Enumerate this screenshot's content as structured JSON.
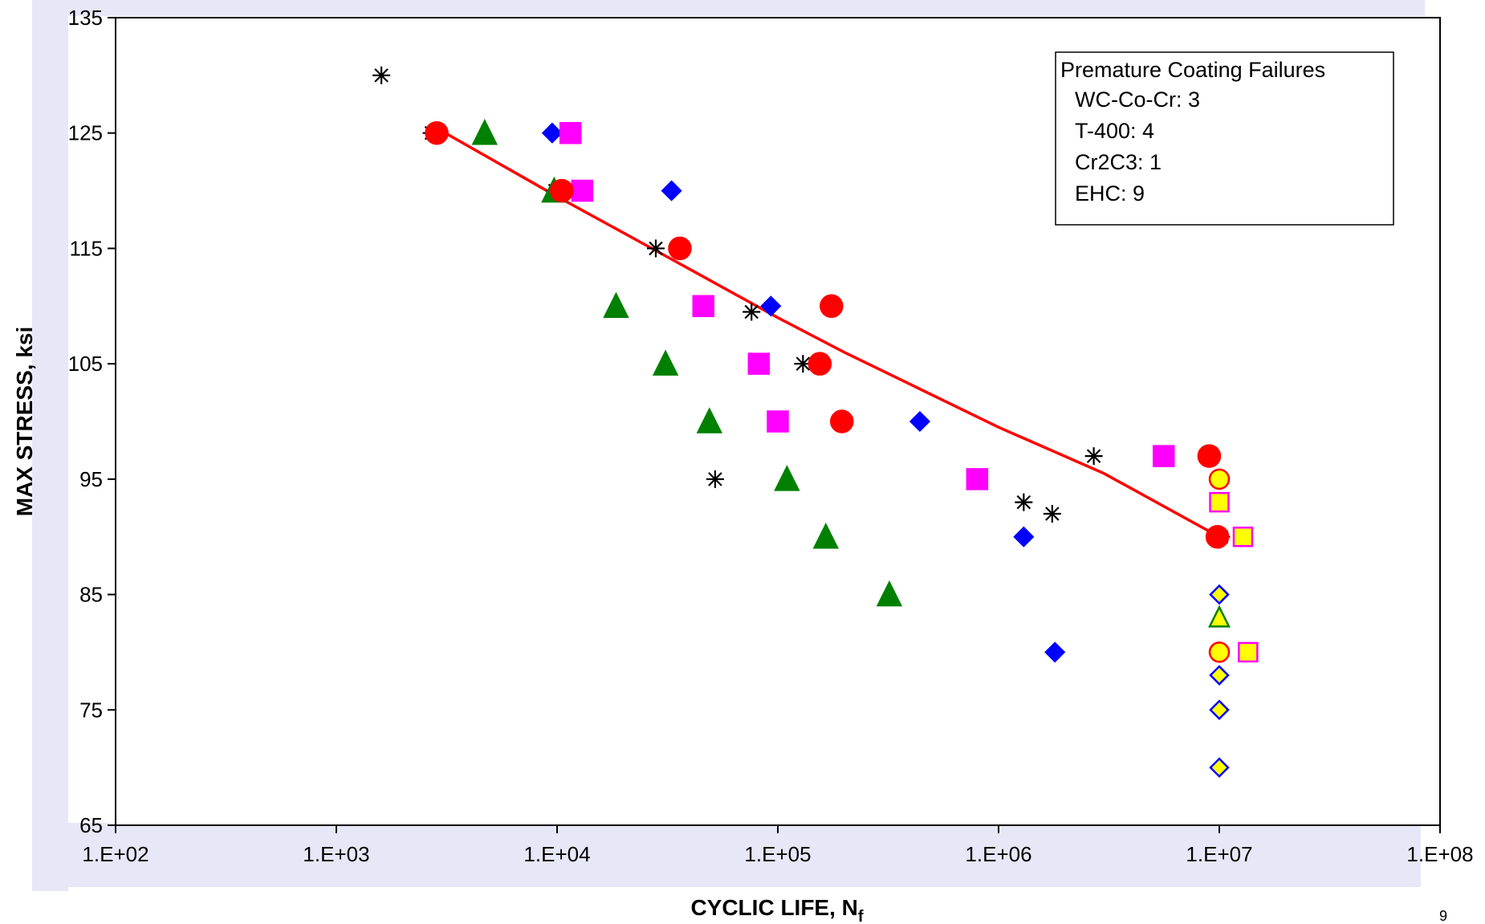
{
  "slide_number": "9",
  "colors": {
    "background_band": "#E6E8F7",
    "trend_line": "#FF0000",
    "green": "#008000",
    "blue": "#0000FF",
    "magenta": "#FF00FF",
    "red": "#FF0000",
    "black": "#000000",
    "runout_fill": "#FFFF00"
  },
  "chart_data": {
    "type": "scatter",
    "title": "",
    "xlabel": "CYCLIC LIFE, N",
    "xlabel_subscript": "f",
    "ylabel": "MAX STRESS, ksi",
    "x_scale": "log",
    "xlim": [
      100,
      100000000
    ],
    "ylim": [
      65,
      135
    ],
    "x_ticks": [
      100,
      1000,
      10000,
      100000,
      1000000,
      10000000,
      100000000
    ],
    "x_tick_labels": [
      "1.E+02",
      "1.E+03",
      "1.E+04",
      "1.E+05",
      "1.E+06",
      "1.E+07",
      "1.E+08"
    ],
    "y_ticks": [
      65,
      75,
      85,
      95,
      105,
      115,
      125,
      135
    ],
    "y_tick_labels": [
      "65",
      "75",
      "85",
      "95",
      "105",
      "115",
      "125",
      "135"
    ],
    "grid": false,
    "legend": {
      "placement": "top-right",
      "title": "Premature Coating Failures",
      "entries": [
        "WC-Co-Cr:  3",
        "T-400:  4",
        "Cr2C3:  1",
        "EHC:  9"
      ]
    },
    "series": [
      {
        "marker": "star",
        "color": "#000000",
        "fill": "none",
        "points": [
          [
            1600,
            130
          ],
          [
            2700,
            125
          ],
          [
            9800,
            120
          ],
          [
            28000,
            115
          ],
          [
            76000,
            109.5
          ],
          [
            130000,
            105
          ],
          [
            200000,
            100
          ],
          [
            52000,
            95
          ],
          [
            2700000,
            97
          ],
          [
            1300000,
            93
          ],
          [
            1750000,
            92
          ],
          [
            10200000,
            90
          ]
        ]
      },
      {
        "marker": "triangle",
        "color": "#008000",
        "fill": "#008000",
        "points": [
          [
            4700,
            125
          ],
          [
            9700,
            120
          ],
          [
            18500,
            110
          ],
          [
            31000,
            105
          ],
          [
            49000,
            100
          ],
          [
            110000,
            95
          ],
          [
            165000,
            90
          ],
          [
            320000,
            85
          ]
        ]
      },
      {
        "marker": "diamond",
        "color": "#0000FF",
        "fill": "#0000FF",
        "points": [
          [
            9500,
            125
          ],
          [
            33000,
            120
          ],
          [
            93000,
            110
          ],
          [
            440000,
            100
          ],
          [
            1300000,
            90
          ],
          [
            1800000,
            80
          ]
        ]
      },
      {
        "marker": "square",
        "color": "#FF00FF",
        "fill": "#FF00FF",
        "points": [
          [
            11500,
            125
          ],
          [
            13000,
            120
          ],
          [
            46000,
            110
          ],
          [
            82000,
            105
          ],
          [
            100000,
            100
          ],
          [
            800000,
            95
          ],
          [
            5600000,
            97
          ]
        ]
      },
      {
        "marker": "circle",
        "color": "#FF0000",
        "fill": "#FF0000",
        "points": [
          [
            2850,
            125
          ],
          [
            10500,
            120
          ],
          [
            36000,
            115
          ],
          [
            175000,
            110
          ],
          [
            155000,
            105
          ],
          [
            195000,
            100
          ],
          [
            9000000,
            97
          ],
          [
            9800000,
            90
          ]
        ]
      },
      {
        "marker": "circle",
        "color": "#FF0000",
        "fill": "#FFFF00",
        "points": [
          [
            10000000,
            95
          ],
          [
            10000000,
            80
          ]
        ]
      },
      {
        "marker": "square",
        "color": "#FF00FF",
        "fill": "#FFFF00",
        "points": [
          [
            10000000,
            93
          ],
          [
            12800000,
            90
          ],
          [
            13500000,
            80
          ]
        ]
      },
      {
        "marker": "triangle",
        "color": "#008000",
        "fill": "#FFFF00",
        "points": [
          [
            10000000,
            83
          ]
        ]
      },
      {
        "marker": "diamond",
        "color": "#0000FF",
        "fill": "#FFFF00",
        "points": [
          [
            10000000,
            85
          ],
          [
            10000000,
            78
          ],
          [
            10000000,
            75
          ],
          [
            10000000,
            70
          ]
        ]
      }
    ],
    "trend_line": {
      "color": "#FF0000",
      "points": [
        [
          2800,
          125.5
        ],
        [
          10000,
          119.5
        ],
        [
          30000,
          114.5
        ],
        [
          100000,
          109
        ],
        [
          200000,
          106
        ],
        [
          1000000,
          99.5
        ],
        [
          3000000,
          95.5
        ],
        [
          10000000,
          90
        ]
      ]
    }
  }
}
